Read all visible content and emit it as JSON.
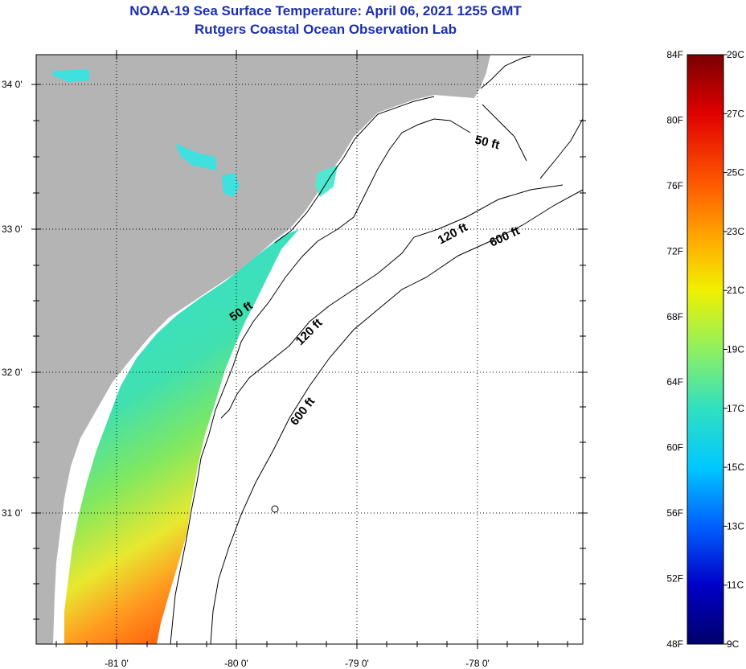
{
  "title": "NOAA-19 Sea Surface Temperature:  April 06, 2021 1255 GMT",
  "subtitle": "Rutgers Coastal Ocean Observation Lab",
  "map": {
    "lat_labels": [
      "34 0'",
      "33 0'",
      "32 0'",
      "31 0'"
    ],
    "lon_labels": [
      "-81 0'",
      "-80 0'",
      "-79 0'",
      "-78 0'"
    ],
    "land_color": "#b4b4b4",
    "water_color": "#ffffff",
    "isobaths": [
      {
        "label": "50 ft"
      },
      {
        "label": "120 ft"
      },
      {
        "label": "600 ft"
      }
    ]
  },
  "colorbar": {
    "fahrenheit_labels": [
      "84F",
      "80F",
      "76F",
      "72F",
      "68F",
      "64F",
      "60F",
      "56F",
      "52F",
      "48F"
    ],
    "celsius_labels": [
      "29C",
      "27C",
      "25C",
      "23C",
      "21C",
      "19C",
      "17C",
      "15C",
      "13C",
      "11C",
      "9C"
    ],
    "colors": [
      "#7a0000",
      "#e00000",
      "#ff5a00",
      "#ffb000",
      "#f0f000",
      "#90f060",
      "#30e0c0",
      "#00c8ff",
      "#0060ff",
      "#0000c8",
      "#00006a"
    ]
  }
}
